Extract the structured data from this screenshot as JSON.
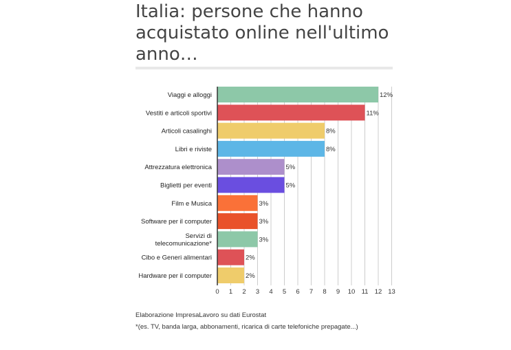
{
  "title": "Italia: persone che hanno acquistato online nell'ultimo anno…",
  "footer": {
    "source": "Elaborazione ImpresaLavoro su dati Eurostat",
    "note": "*(es. TV, banda larga, abbonamenti, ricarica di carte telefoniche prepagate...)"
  },
  "chart_data": {
    "type": "bar",
    "orientation": "horizontal",
    "title": "Italia: persone che hanno acquistato online nell'ultimo anno…",
    "xlabel": "",
    "ylabel": "",
    "xlim": [
      0,
      13
    ],
    "xticks": [
      "0",
      "1",
      "2",
      "3",
      "4",
      "5",
      "6",
      "7",
      "8",
      "9",
      "10",
      "11",
      "12",
      "13"
    ],
    "grid": true,
    "legend": "none",
    "categories": [
      "Viaggi e alloggi",
      "Vestiti e articoli sportivi",
      "Articoli casalinghi",
      "Libri e riviste",
      "Attrezzatura elettronica",
      "Biglietti per eventi",
      "Film e Musica",
      "Software per il computer",
      "Servizi di telecomunicazione*",
      "Cibo e Generi alimentari",
      "Hardware per il computer"
    ],
    "values": [
      12,
      11,
      8,
      8,
      5,
      5,
      3,
      3,
      3,
      2,
      2
    ],
    "data_labels": [
      "12%",
      "11%",
      "8%",
      "8%",
      "5%",
      "5%",
      "3%",
      "3%",
      "3%",
      "2%",
      "2%"
    ],
    "colors": [
      "#8dc8a8",
      "#de5257",
      "#efcc6b",
      "#5db6e6",
      "#ad8fcb",
      "#6a4ee0",
      "#fa7138",
      "#e9522a",
      "#8dc8a8",
      "#de5257",
      "#efcc6b"
    ]
  }
}
